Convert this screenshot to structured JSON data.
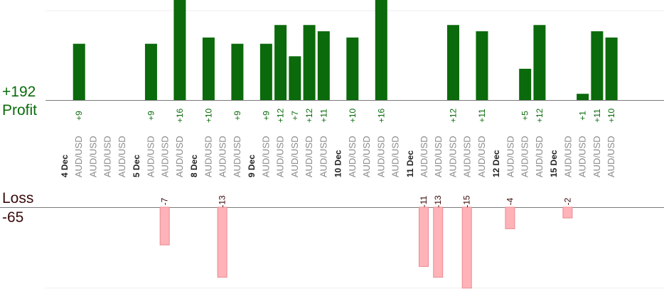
{
  "summary": {
    "profit_total": "+192",
    "profit_label": "Profit",
    "loss_label": "Loss",
    "loss_total": "-65"
  },
  "colors": {
    "profit_bar": "#0b6a0b",
    "profit_text": "#0a6b0a",
    "loss_bar": "#ffb3b8",
    "loss_bar_edge": "#e88a90",
    "loss_text": "#3a0a0a",
    "pair_text": "#8a8a8a",
    "date_text": "#222222"
  },
  "chart_data": {
    "type": "bar",
    "profit_axis_max": 16,
    "loss_axis_max": 15,
    "columns": [
      {
        "kind": "date",
        "label": "4 Dec"
      },
      {
        "kind": "trade",
        "pair": "AUD/USD",
        "value": 9
      },
      {
        "kind": "trade",
        "pair": "AUD/USD",
        "value": 0
      },
      {
        "kind": "trade",
        "pair": "AUD/USD",
        "value": 0
      },
      {
        "kind": "trade",
        "pair": "AUD/USD",
        "value": 0
      },
      {
        "kind": "date",
        "label": "5 Dec"
      },
      {
        "kind": "trade",
        "pair": "AUD/USD",
        "value": 9
      },
      {
        "kind": "trade",
        "pair": "AUD/USD",
        "value": -7
      },
      {
        "kind": "trade",
        "pair": "AUD/USD",
        "value": 16
      },
      {
        "kind": "date",
        "label": "8 Dec"
      },
      {
        "kind": "trade",
        "pair": "AUD/USD",
        "value": 10
      },
      {
        "kind": "trade",
        "pair": "AUD/USD",
        "value": -13
      },
      {
        "kind": "trade",
        "pair": "AUD/USD",
        "value": 9
      },
      {
        "kind": "date",
        "label": "9 Dec"
      },
      {
        "kind": "trade",
        "pair": "AUD/USD",
        "value": 9
      },
      {
        "kind": "trade",
        "pair": "AUD/USD",
        "value": 12
      },
      {
        "kind": "trade",
        "pair": "AUD/USD",
        "value": 7
      },
      {
        "kind": "trade",
        "pair": "AUD/USD",
        "value": 12
      },
      {
        "kind": "trade",
        "pair": "AUD/USD",
        "value": 11
      },
      {
        "kind": "date",
        "label": "10 Dec"
      },
      {
        "kind": "trade",
        "pair": "AUD/USD",
        "value": 10
      },
      {
        "kind": "trade",
        "pair": "AUD/USD",
        "value": 0
      },
      {
        "kind": "trade",
        "pair": "AUD/USD",
        "value": 16
      },
      {
        "kind": "trade",
        "pair": "AUD/USD",
        "value": 0
      },
      {
        "kind": "date",
        "label": "11 Dec"
      },
      {
        "kind": "trade",
        "pair": "AUD/USD",
        "value": -11
      },
      {
        "kind": "trade",
        "pair": "AUD/USD",
        "value": -13
      },
      {
        "kind": "trade",
        "pair": "AUD/USD",
        "value": 12
      },
      {
        "kind": "trade",
        "pair": "AUD/USD",
        "value": -15
      },
      {
        "kind": "trade",
        "pair": "AUD/USD",
        "value": 11
      },
      {
        "kind": "date",
        "label": "12 Dec"
      },
      {
        "kind": "trade",
        "pair": "AUD/USD",
        "value": -4
      },
      {
        "kind": "trade",
        "pair": "AUD/USD",
        "value": 5
      },
      {
        "kind": "trade",
        "pair": "AUD/USD",
        "value": 12
      },
      {
        "kind": "date",
        "label": "15 Dec"
      },
      {
        "kind": "trade",
        "pair": "AUD/USD",
        "value": -2
      },
      {
        "kind": "trade",
        "pair": "AUD/USD",
        "value": 1
      },
      {
        "kind": "trade",
        "pair": "AUD/USD",
        "value": 11
      },
      {
        "kind": "trade",
        "pair": "AUD/USD",
        "value": 10
      }
    ]
  }
}
